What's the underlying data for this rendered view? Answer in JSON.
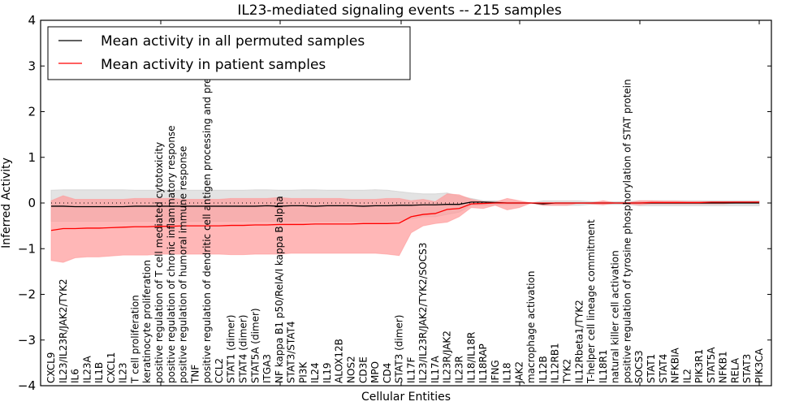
{
  "chart_data": {
    "type": "line",
    "title": "IL23-mediated signaling events -- 215 samples",
    "xlabel": "Cellular Entities",
    "ylabel": "Inferred Activity",
    "ylim": [
      -4,
      4
    ],
    "yticks": [
      -4,
      -3,
      -2,
      -1,
      0,
      1,
      2,
      3,
      4
    ],
    "ytick_labels": [
      "−4",
      "−3",
      "−2",
      "−1",
      "0",
      "1",
      "2",
      "3",
      "4"
    ],
    "grid": false,
    "legend_position": "top-left",
    "reference_line": 0,
    "categories": [
      "CXCL9",
      "IL23/IL23R/JAK2/TYK2",
      "IL6",
      "IL23A",
      "IL1B",
      "CXCL1",
      "IL23",
      "T cell proliferation",
      "keratinocyte proliferation",
      "positive regulation of T cell mediated cytotoxicity",
      "positive regulation of chronic inflammatory response",
      "positive regulation of humoral immune response",
      "TNF",
      "positive regulation of dendritic cell antigen processing and presentation",
      "CCL2",
      "STAT1 (dimer)",
      "STAT4 (dimer)",
      "STAT5A (dimer)",
      "ITGA3",
      "NF kappa B1 p50/RelA/I kappa B alpha",
      "STAT3/STAT4",
      "PI3K",
      "IL24",
      "IL19",
      "ALOX12B",
      "NOS2",
      "CD3E",
      "MPO",
      "CD4",
      "STAT3 (dimer)",
      "IL17F",
      "IL23/IL23R/JAK2/TYK2/SOCS3",
      "IL17A",
      "IL23R/JAK2",
      "IL23R",
      "IL18/IL18R",
      "IL18RAP",
      "IFNG",
      "IL18",
      "JAK2",
      "macrophage activation",
      "IL12B",
      "IL12RB1",
      "TYK2",
      "IL12Rbeta1/TYK2",
      "T-helper cell lineage commitment",
      "IL18R1",
      "natural killer cell activation",
      "positive regulation of tyrosine phosphorylation of STAT protein",
      "SOCS3",
      "STAT1",
      "STAT4",
      "NFKBIA",
      "IL2",
      "PIK3R1",
      "STAT5A",
      "NFKB1",
      "RELA",
      "STAT3",
      "PIK3CA"
    ],
    "series": [
      {
        "name": "Mean activity in all permuted samples",
        "color": "#000000",
        "values": [
          -0.07,
          -0.07,
          -0.08,
          -0.08,
          -0.08,
          -0.08,
          -0.08,
          -0.07,
          -0.07,
          -0.07,
          -0.07,
          -0.07,
          -0.07,
          -0.07,
          -0.07,
          -0.07,
          -0.07,
          -0.07,
          -0.06,
          -0.07,
          -0.06,
          -0.06,
          -0.07,
          -0.06,
          -0.06,
          -0.06,
          -0.07,
          -0.06,
          -0.06,
          -0.05,
          -0.05,
          -0.04,
          -0.04,
          -0.03,
          -0.03,
          0.02,
          0.02,
          0.01,
          0.0,
          0.0,
          0.0,
          -0.02,
          0.0,
          0.0,
          0.0,
          0.0,
          0.0,
          0.0,
          0.0,
          0.0,
          0.0,
          0.0,
          0.0,
          0.0,
          0.0,
          0.0,
          0.0,
          0.0,
          0.0,
          0.0
        ],
        "band": {
          "color": "#c8c8c8",
          "upper": [
            0.28,
            0.29,
            0.29,
            0.29,
            0.29,
            0.29,
            0.29,
            0.28,
            0.28,
            0.28,
            0.28,
            0.28,
            0.28,
            0.28,
            0.28,
            0.28,
            0.28,
            0.29,
            0.29,
            0.28,
            0.28,
            0.29,
            0.29,
            0.28,
            0.28,
            0.28,
            0.28,
            0.29,
            0.28,
            0.25,
            0.22,
            0.2,
            0.2,
            0.22,
            0.15,
            0.1,
            0.05,
            0.05,
            0.02,
            0.02,
            0.0,
            0.05,
            0.05,
            0.05,
            0.05,
            0.03,
            0.03,
            0.03,
            0.03,
            0.05,
            0.05,
            0.05,
            0.05,
            0.05,
            0.05,
            0.05,
            0.05,
            0.05,
            0.05,
            0.05
          ],
          "lower": [
            -0.4,
            -0.4,
            -0.4,
            -0.4,
            -0.4,
            -0.4,
            -0.4,
            -0.4,
            -0.4,
            -0.4,
            -0.4,
            -0.4,
            -0.4,
            -0.4,
            -0.4,
            -0.4,
            -0.4,
            -0.4,
            -0.4,
            -0.4,
            -0.4,
            -0.4,
            -0.4,
            -0.4,
            -0.4,
            -0.4,
            -0.4,
            -0.4,
            -0.4,
            -0.38,
            -0.35,
            -0.3,
            -0.3,
            -0.25,
            -0.2,
            -0.05,
            -0.05,
            -0.05,
            -0.03,
            -0.03,
            0.0,
            -0.05,
            -0.05,
            -0.05,
            -0.05,
            -0.03,
            -0.03,
            -0.03,
            -0.03,
            -0.06,
            -0.06,
            -0.06,
            -0.06,
            -0.06,
            -0.06,
            -0.06,
            -0.06,
            -0.06,
            -0.06,
            -0.06
          ]
        }
      },
      {
        "name": "Mean activity in patient samples",
        "color": "#ff0000",
        "values": [
          -0.6,
          -0.56,
          -0.56,
          -0.55,
          -0.55,
          -0.54,
          -0.53,
          -0.52,
          -0.52,
          -0.51,
          -0.51,
          -0.5,
          -0.5,
          -0.5,
          -0.5,
          -0.49,
          -0.49,
          -0.48,
          -0.48,
          -0.47,
          -0.47,
          -0.47,
          -0.46,
          -0.46,
          -0.46,
          -0.46,
          -0.45,
          -0.45,
          -0.45,
          -0.44,
          -0.3,
          -0.25,
          -0.23,
          -0.14,
          -0.12,
          -0.02,
          -0.01,
          0.0,
          0.0,
          0.0,
          0.0,
          0.0,
          0.0,
          0.0,
          0.0,
          0.0,
          0.0,
          0.0,
          0.0,
          0.0,
          0.01,
          0.01,
          0.01,
          0.01,
          0.01,
          0.02,
          0.02,
          0.02,
          0.02,
          0.02
        ],
        "band": {
          "color": "#ff9999",
          "upper": [
            0.05,
            0.16,
            0.08,
            0.08,
            0.08,
            0.08,
            0.08,
            0.1,
            0.1,
            0.1,
            0.1,
            0.08,
            0.08,
            0.08,
            0.08,
            0.1,
            0.1,
            0.1,
            0.1,
            0.12,
            0.1,
            0.1,
            0.1,
            0.1,
            0.1,
            0.08,
            0.08,
            0.08,
            0.1,
            0.1,
            0.05,
            0.08,
            0.03,
            0.2,
            0.18,
            0.08,
            0.03,
            0.02,
            0.1,
            0.05,
            0.0,
            0.0,
            0.0,
            0.0,
            -0.01,
            0.0,
            0.05,
            0.0,
            0.0,
            0.05,
            0.05,
            0.04,
            0.04,
            0.03,
            0.03,
            0.02,
            0.02,
            0.03,
            0.03,
            0.03
          ],
          "lower": [
            -1.26,
            -1.3,
            -1.2,
            -1.18,
            -1.18,
            -1.16,
            -1.14,
            -1.14,
            -1.14,
            -1.12,
            -1.12,
            -1.12,
            -1.12,
            -1.12,
            -1.12,
            -1.13,
            -1.13,
            -1.12,
            -1.12,
            -1.12,
            -1.1,
            -1.1,
            -1.1,
            -1.1,
            -1.1,
            -1.1,
            -1.1,
            -1.1,
            -1.12,
            -1.15,
            -0.65,
            -0.5,
            -0.45,
            -0.42,
            -0.3,
            -0.1,
            -0.12,
            -0.05,
            -0.15,
            -0.1,
            0.0,
            -0.05,
            -0.05,
            -0.05,
            0.0,
            -0.02,
            -0.04,
            0.0,
            -0.02,
            -0.04,
            -0.02,
            -0.02,
            -0.02,
            -0.02,
            -0.02,
            -0.02,
            -0.02,
            0.0,
            0.0,
            0.0
          ]
        }
      }
    ]
  }
}
